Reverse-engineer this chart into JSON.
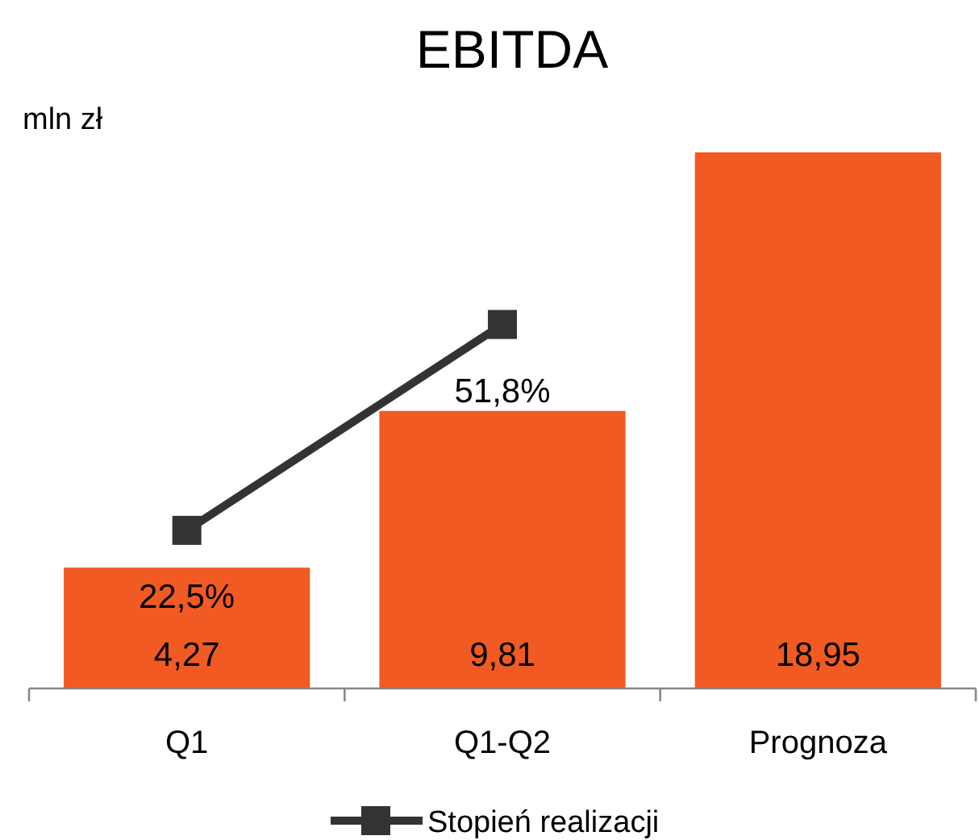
{
  "chart_data": {
    "type": "bar",
    "title": "EBITDA",
    "ylabel": "mln zł",
    "categories": [
      "Q1",
      "Q1-Q2",
      "Prognoza"
    ],
    "tick_labels": "x",
    "legend": "bottom",
    "series": [
      {
        "color": "#f15a22",
        "values": [
          4.27,
          9.81,
          18.95
        ],
        "value_labels": [
          "4,27",
          "9,81",
          "18,95"
        ]
      },
      {
        "type": "line",
        "name": "Stopień realizacji",
        "axis": "y2",
        "color": "#333333",
        "marker": "square",
        "line_style": "solid",
        "values": [
          22.5,
          51.8,
          null
        ],
        "value_labels": [
          "22,5%",
          "51,8%",
          null
        ]
      }
    ]
  }
}
